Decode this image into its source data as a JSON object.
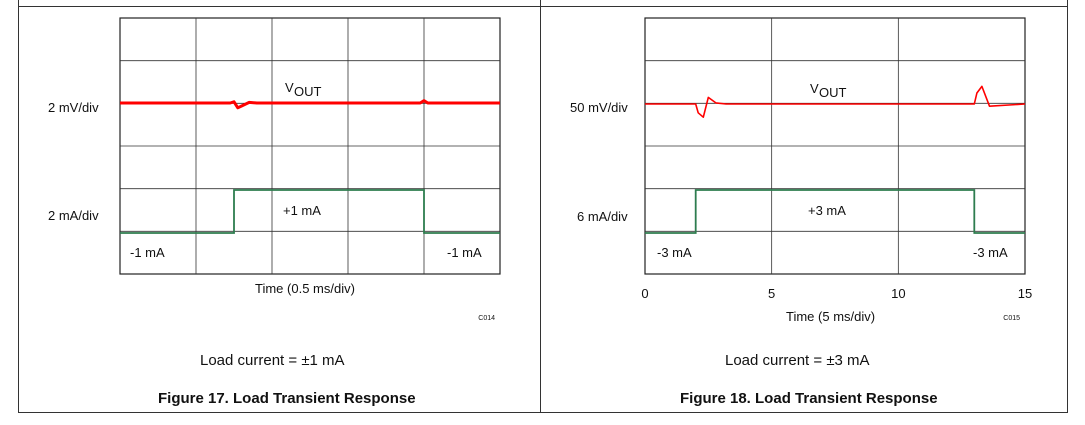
{
  "chart_data": [
    {
      "type": "line",
      "title": "",
      "xlabel": "Time (0.5 ms/div)",
      "ylabels": [
        "2 mV/div",
        "2 mA/div"
      ],
      "vout_label": "V",
      "vout_sub": "OUT",
      "step_high_label": "+1 mA",
      "step_low_left_label": "-1 mA",
      "step_low_right_label": "-1 mA",
      "code": "C014",
      "x_divisions": 5,
      "y_divisions": 6,
      "x_ticks": [],
      "series": [
        {
          "name": "",
          "color": "#ff0000",
          "x": [
            0,
            1.45,
            1.5,
            1.55,
            1.6,
            1.7,
            1.8,
            3.95,
            4.0,
            4.05,
            5.0
          ],
          "y": [
            0,
            0,
            0.2,
            -0.8,
            -0.5,
            0.1,
            0,
            0,
            0.4,
            0,
            0
          ]
        },
        {
          "name": "",
          "color": "#2e7d4f",
          "x": [
            0,
            1.5,
            1.5,
            4.0,
            4.0,
            5.0
          ],
          "y": [
            -1,
            -1,
            1,
            1,
            -1,
            -1
          ]
        }
      ],
      "caption": "Load current = ±1 mA",
      "figure_title": "Figure 17. Load Transient Response"
    },
    {
      "type": "line",
      "title": "",
      "xlabel": "Time (5 ms/div)",
      "ylabels": [
        "50 mV/div",
        "6 mA/div"
      ],
      "vout_label": "V",
      "vout_sub": "OUT",
      "step_high_label": "+3 mA",
      "step_low_left_label": "-3 mA",
      "step_low_right_label": "-3 mA",
      "code": "C015",
      "x_divisions": 3,
      "y_divisions": 6,
      "x_ticks": [
        "0",
        "5",
        "10",
        "15"
      ],
      "xlim": [
        0,
        15
      ],
      "series": [
        {
          "name": "",
          "color": "#ff0000",
          "x": [
            0,
            2.0,
            2.1,
            2.3,
            2.5,
            2.8,
            3.2,
            13.0,
            13.1,
            13.3,
            13.6,
            15.0
          ],
          "y": [
            0,
            0,
            -0.4,
            -0.6,
            0.3,
            0.05,
            0,
            0,
            0.5,
            0.8,
            -0.1,
            0
          ]
        },
        {
          "name": "",
          "color": "#2e7d4f",
          "x": [
            0,
            2.0,
            2.0,
            13.0,
            13.0,
            15.0
          ],
          "y": [
            -3,
            -3,
            3,
            3,
            -3,
            -3
          ]
        }
      ],
      "caption": "Load current = ±3 mA",
      "figure_title": "Figure 18. Load Transient Response"
    }
  ]
}
